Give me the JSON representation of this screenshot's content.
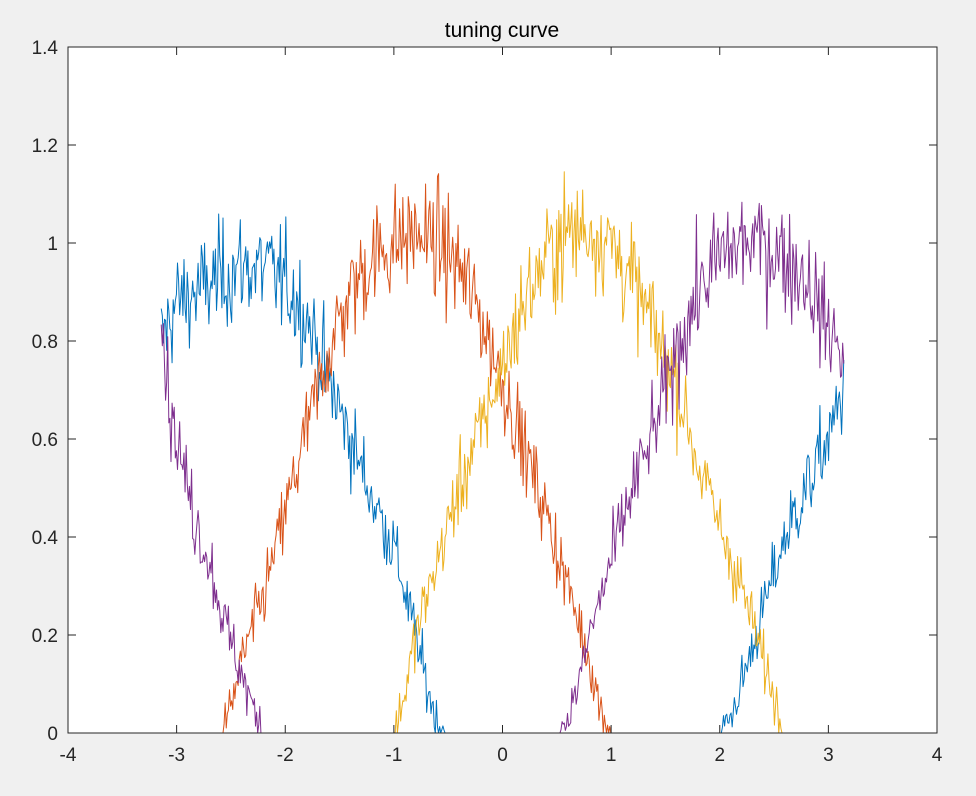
{
  "chart_data": {
    "type": "line",
    "title": "tuning curve",
    "xlabel": "",
    "ylabel": "",
    "xlim": [
      -4,
      4
    ],
    "ylim": [
      0,
      1.4
    ],
    "xticks": [
      "-4",
      "-3",
      "-2",
      "-1",
      "0",
      "1",
      "2",
      "3",
      "4"
    ],
    "yticks": [
      "0",
      "0.2",
      "0.4",
      "0.6",
      "0.8",
      "1",
      "1.2",
      "1.4"
    ],
    "grid": false,
    "legend": "none",
    "noise_amplitude": 0.08,
    "series": [
      {
        "color": "#0072BD",
        "x": [
          -3.14,
          -3.0,
          -2.8,
          -2.6,
          -2.4,
          -2.2,
          -2.0,
          -1.8,
          -1.6,
          -1.4,
          -1.2,
          -1.0,
          -0.8,
          -0.7,
          -0.6,
          -0.5,
          1.0,
          2.0,
          2.1,
          2.2,
          2.4,
          2.6,
          2.8,
          3.0,
          3.14
        ],
        "y": [
          0.8,
          0.88,
          0.9,
          0.93,
          0.95,
          0.95,
          0.92,
          0.85,
          0.72,
          0.6,
          0.48,
          0.38,
          0.2,
          0.1,
          0.02,
          0.0,
          0.0,
          0.0,
          0.03,
          0.1,
          0.25,
          0.4,
          0.5,
          0.6,
          0.7
        ]
      },
      {
        "color": "#D95319",
        "x": [
          -3.14,
          -2.6,
          -2.5,
          -2.4,
          -2.2,
          -2.0,
          -1.8,
          -1.6,
          -1.4,
          -1.2,
          -1.0,
          -0.8,
          -0.6,
          -0.4,
          -0.2,
          0.0,
          0.2,
          0.4,
          0.6,
          0.8,
          0.9,
          1.0,
          3.14
        ],
        "y": [
          0.0,
          0.0,
          0.05,
          0.15,
          0.28,
          0.45,
          0.62,
          0.78,
          0.9,
          0.97,
          1.0,
          1.02,
          1.0,
          0.95,
          0.85,
          0.72,
          0.58,
          0.45,
          0.3,
          0.15,
          0.05,
          0.0,
          0.0
        ]
      },
      {
        "color": "#EDB120",
        "x": [
          -3.14,
          -1.0,
          -0.9,
          -0.8,
          -0.6,
          -0.4,
          -0.2,
          0.0,
          0.2,
          0.4,
          0.6,
          0.8,
          1.0,
          1.2,
          1.4,
          1.6,
          1.8,
          2.0,
          2.2,
          2.4,
          2.6,
          3.14
        ],
        "y": [
          0.0,
          0.0,
          0.08,
          0.2,
          0.35,
          0.5,
          0.62,
          0.75,
          0.88,
          0.97,
          1.02,
          1.03,
          1.0,
          0.92,
          0.82,
          0.72,
          0.55,
          0.42,
          0.3,
          0.15,
          0.0,
          0.0
        ]
      },
      {
        "color": "#7E2F8E",
        "x": [
          -3.14,
          -3.05,
          -2.95,
          -2.85,
          -2.7,
          -2.55,
          -2.4,
          -2.3,
          -2.2,
          0.5,
          0.6,
          0.7,
          0.8,
          1.0,
          1.2,
          1.4,
          1.6,
          1.8,
          2.0,
          2.2,
          2.4,
          2.6,
          2.8,
          3.0,
          3.14
        ],
        "y": [
          0.85,
          0.65,
          0.55,
          0.45,
          0.35,
          0.22,
          0.12,
          0.05,
          0.0,
          0.0,
          0.03,
          0.1,
          0.2,
          0.35,
          0.5,
          0.62,
          0.78,
          0.9,
          0.97,
          1.0,
          1.0,
          0.97,
          0.93,
          0.82,
          0.78
        ]
      }
    ]
  }
}
